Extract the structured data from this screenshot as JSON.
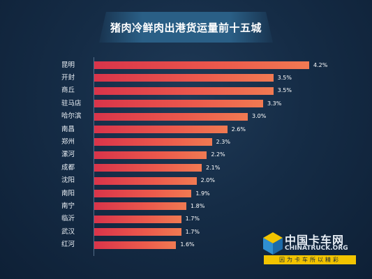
{
  "chart_data": {
    "type": "bar",
    "orientation": "horizontal",
    "title": "猪肉冷鲜肉出港货运量前十五城",
    "categories": [
      "昆明",
      "开封",
      "商丘",
      "驻马店",
      "哈尔滨",
      "南昌",
      "郑州",
      "漯河",
      "成都",
      "沈阳",
      "南阳",
      "南宁",
      "临沂",
      "武汉",
      "红河"
    ],
    "values": [
      4.2,
      3.5,
      3.5,
      3.3,
      3.0,
      2.6,
      2.3,
      2.2,
      2.1,
      2.0,
      1.9,
      1.8,
      1.7,
      1.7,
      1.6
    ],
    "value_labels": [
      "4.2%",
      "3.5%",
      "3.5%",
      "3.3%",
      "3.0%",
      "2.6%",
      "2.3%",
      "2.2%",
      "2.1%",
      "2.0%",
      "1.9%",
      "1.8%",
      "1.7%",
      "1.7%",
      "1.6%"
    ],
    "value_unit": "%",
    "xlim": [
      0,
      4.2
    ],
    "grid": false,
    "colors": {
      "bar_start": "#d9344a",
      "bar_end": "#f07a52",
      "background": "#152c46"
    }
  },
  "watermark": {
    "name_cn": "中国卡车网",
    "name_en": "CHINATRUCK.ORG",
    "slogan": "因为卡车所以精彩",
    "icon": "cube-logo-icon"
  }
}
